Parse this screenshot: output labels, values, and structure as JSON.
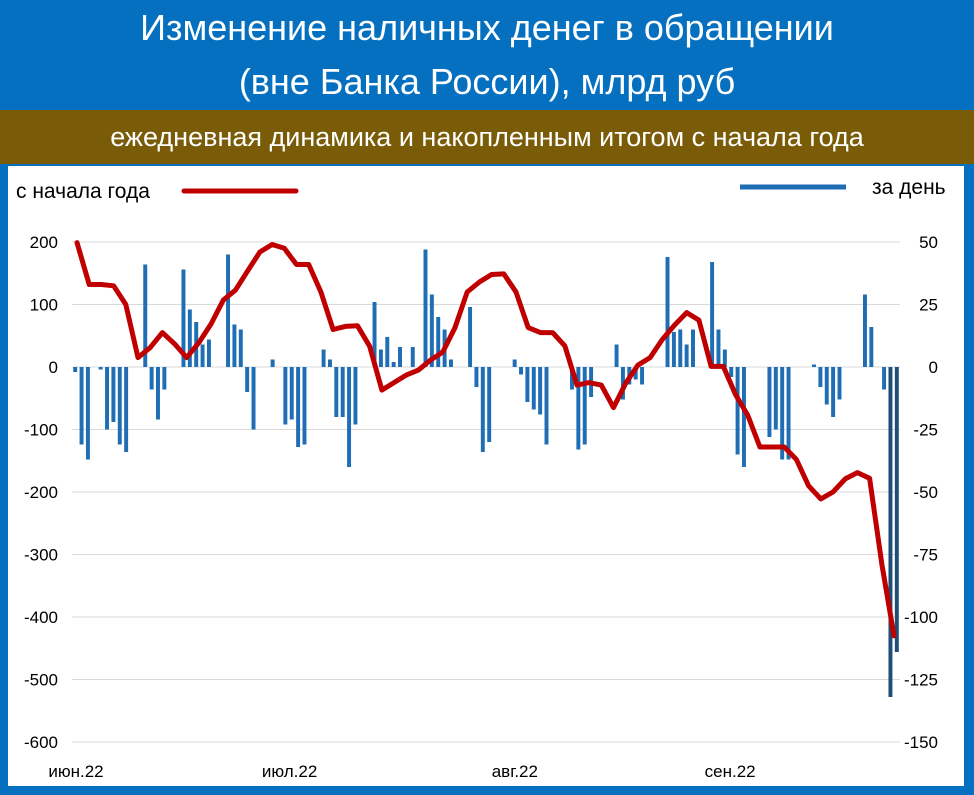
{
  "title_line1": "Изменение наличных денег в обращении",
  "title_line2": "(вне Банка России), млрд руб",
  "subtitle": "ежедневная динамика и накопленным итогом с начала года",
  "colors": {
    "background": "#0570c0",
    "subtitle_band": "#7a5c08",
    "line": "#c00000",
    "bars": "#1f6db5",
    "bars_highlight": "#1f4e79",
    "grid": "#d9d9d9"
  },
  "chart_data": {
    "type": "bar+line",
    "x_tick_labels": [
      "июн.22",
      "июл.22",
      "авг.22",
      "сен.22"
    ],
    "left_axis": {
      "ticks": [
        200,
        100,
        0,
        -100,
        -200,
        -300,
        -400,
        -500,
        -600
      ],
      "ylim": [
        -600,
        200
      ]
    },
    "right_axis": {
      "ticks": [
        50,
        25,
        0,
        -25,
        -50,
        -75,
        -100,
        -125,
        -150
      ],
      "ylim": [
        -150,
        50
      ]
    },
    "grid": true,
    "series": [
      {
        "name": "с начала года",
        "type": "line",
        "axis": "left",
        "legend_position": "top-left",
        "values": [
          199,
          132,
          132,
          130,
          100,
          15,
          31,
          55,
          37,
          15,
          39,
          69,
          107,
          123,
          154,
          184,
          196,
          190,
          164,
          164,
          120,
          60,
          65,
          66,
          33,
          -37,
          -25,
          -13,
          -5,
          11,
          24,
          63,
          120,
          136,
          148,
          149,
          120,
          63,
          55,
          55,
          34,
          -29,
          -25,
          -29,
          -65,
          -26,
          3,
          15,
          44,
          67,
          87,
          75,
          1,
          1,
          -44,
          -77,
          -128,
          -128,
          -128,
          -148,
          -190,
          -211,
          -200,
          -179,
          -169,
          -178,
          -315,
          -430
        ]
      },
      {
        "name": "за день",
        "type": "bar",
        "axis": "right",
        "legend_position": "top-right",
        "values": [
          -2,
          -31,
          -37,
          0,
          -1,
          -25,
          -22,
          -31,
          -34,
          0,
          0,
          41,
          -9,
          -21,
          -9,
          0,
          0,
          39,
          23,
          18,
          9,
          11,
          0,
          0,
          45,
          17,
          15,
          -10,
          -25,
          0,
          0,
          3,
          0,
          -23,
          -21,
          -32,
          -31,
          0,
          0,
          7,
          3,
          -20,
          -20,
          -40,
          -23,
          0,
          0,
          26,
          7,
          12,
          2,
          8,
          0,
          8,
          0,
          47,
          29,
          20,
          15,
          3,
          0,
          0,
          24,
          -8,
          -34,
          -30,
          0,
          0,
          0,
          3,
          -3,
          -14,
          -17,
          -19,
          -31,
          0,
          0,
          0,
          -9,
          -33,
          -31,
          -12,
          0,
          0,
          0,
          9,
          -13,
          -7,
          -5,
          -7,
          0,
          0,
          0,
          44,
          14,
          15,
          9,
          15,
          0,
          0,
          42,
          15,
          7,
          -4,
          -35,
          -40,
          0,
          0,
          0,
          -28,
          -25,
          -37,
          -37,
          0,
          0,
          0,
          1,
          -8,
          -15,
          -20,
          -13,
          0,
          0,
          0,
          29,
          16,
          0,
          -9,
          -132,
          -114
        ]
      }
    ]
  }
}
